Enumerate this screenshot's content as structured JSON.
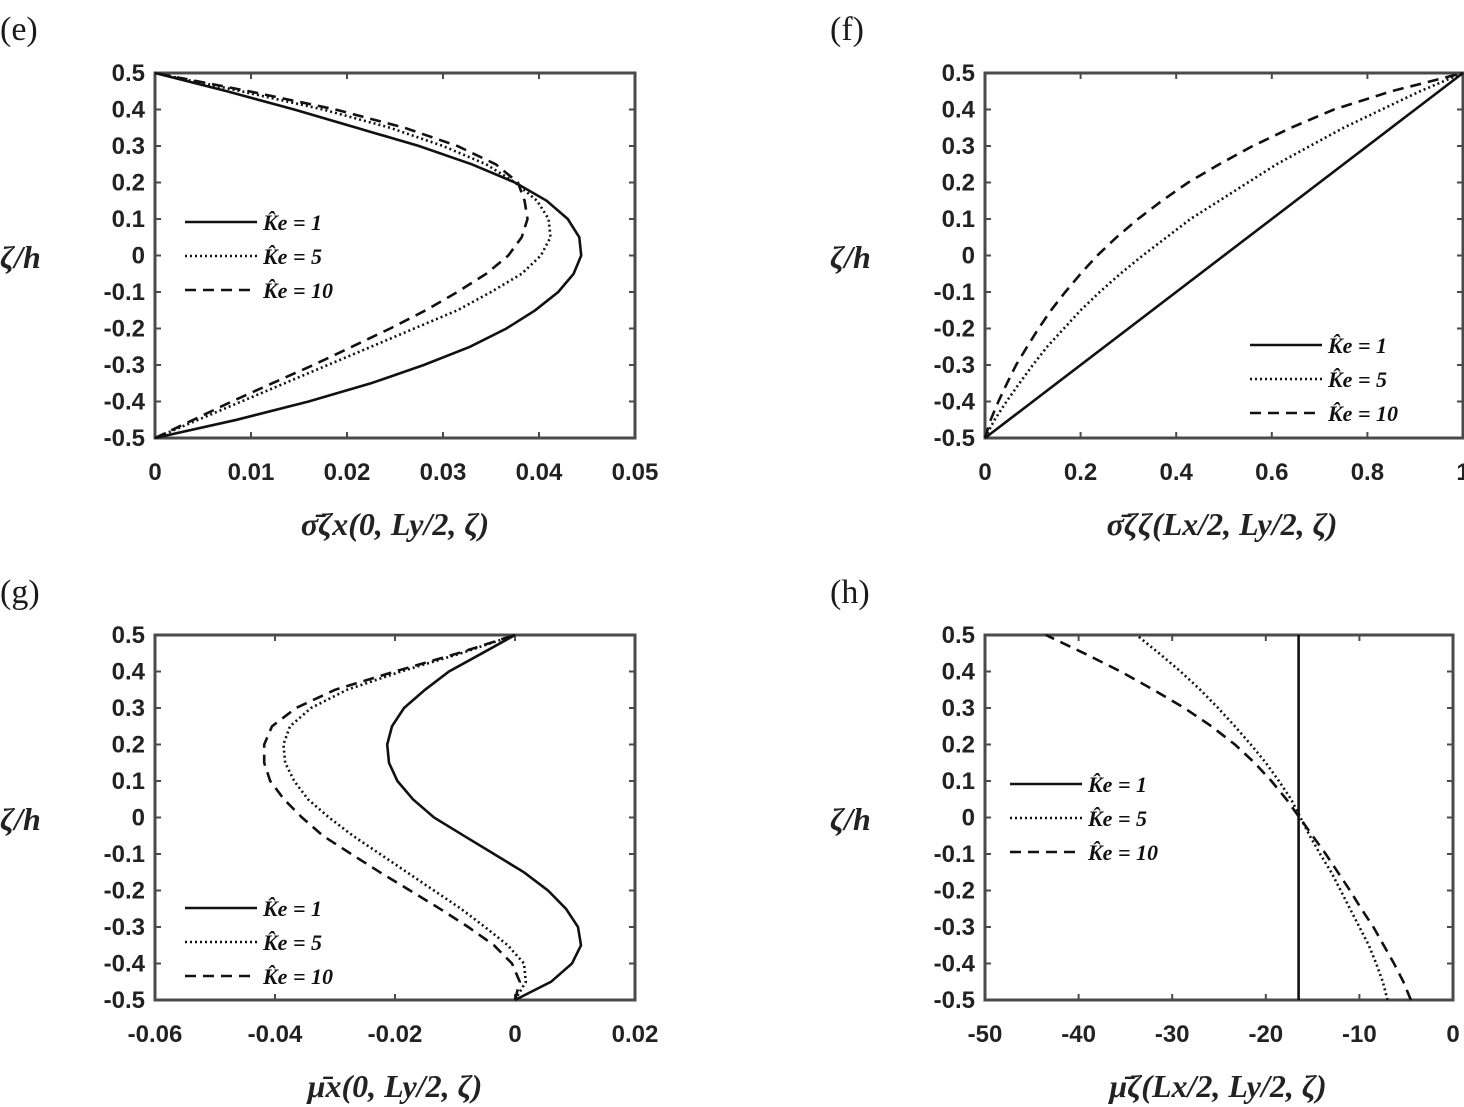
{
  "chart_data": [
    {
      "panel": "(e)",
      "type": "line",
      "xlabel": "σ̄ζx(0, Ly/2, ζ)",
      "ylabel": "ζ/h",
      "xlim": [
        0,
        0.05
      ],
      "ylim": [
        -0.5,
        0.5
      ],
      "xticks": [
        0,
        0.01,
        0.02,
        0.03,
        0.04,
        0.05
      ],
      "xtick_labels": [
        "0",
        "0.01",
        "0.02",
        "0.03",
        "0.04",
        "0.05"
      ],
      "yticks": [
        0.5,
        0.4,
        0.3,
        0.2,
        0.1,
        0,
        -0.1,
        -0.2,
        -0.3,
        -0.4,
        -0.5
      ],
      "ytick_labels": [
        "0.5",
        "0.4",
        "0.3",
        "0.2",
        "0.1",
        "0",
        "-0.1",
        "-0.2",
        "-0.3",
        "-0.4",
        "-0.5"
      ],
      "legend_position": "center-left",
      "grid": false,
      "series": [
        {
          "name": "K̂e = 1",
          "dash": "solid",
          "y": [
            -0.5,
            -0.45,
            -0.4,
            -0.35,
            -0.3,
            -0.25,
            -0.2,
            -0.15,
            -0.1,
            -0.05,
            0,
            0.05,
            0.1,
            0.15,
            0.2,
            0.25,
            0.3,
            0.35,
            0.4,
            0.45,
            0.5
          ],
          "x": [
            0,
            0.0085,
            0.016,
            0.0225,
            0.028,
            0.0328,
            0.0366,
            0.0396,
            0.042,
            0.0436,
            0.0444,
            0.0442,
            0.043,
            0.0408,
            0.0375,
            0.033,
            0.0275,
            0.021,
            0.0145,
            0.0075,
            0
          ]
        },
        {
          "name": "K̂e = 5",
          "dash": "dotted",
          "y": [
            -0.5,
            -0.45,
            -0.4,
            -0.35,
            -0.3,
            -0.25,
            -0.2,
            -0.15,
            -0.1,
            -0.05,
            0,
            0.05,
            0.1,
            0.15,
            0.2,
            0.25,
            0.3,
            0.35,
            0.4,
            0.45,
            0.5
          ],
          "x": [
            0,
            0.0045,
            0.009,
            0.0135,
            0.018,
            0.0225,
            0.027,
            0.0315,
            0.035,
            0.0382,
            0.0402,
            0.0412,
            0.041,
            0.0398,
            0.0375,
            0.0345,
            0.03,
            0.0245,
            0.0175,
            0.009,
            0
          ]
        },
        {
          "name": "K̂e = 10",
          "dash": "dashed",
          "y": [
            -0.5,
            -0.45,
            -0.4,
            -0.35,
            -0.3,
            -0.25,
            -0.2,
            -0.15,
            -0.1,
            -0.05,
            0,
            0.05,
            0.1,
            0.15,
            0.2,
            0.25,
            0.3,
            0.35,
            0.4,
            0.45,
            0.5
          ],
          "x": [
            0,
            0.004,
            0.008,
            0.0122,
            0.0165,
            0.0205,
            0.0245,
            0.0282,
            0.0315,
            0.0345,
            0.0368,
            0.0382,
            0.0388,
            0.0385,
            0.0378,
            0.0355,
            0.0315,
            0.026,
            0.0188,
            0.0098,
            0
          ]
        }
      ]
    },
    {
      "panel": "(f)",
      "type": "line",
      "xlabel": "σ̄ζζ(Lx/2, Ly/2, ζ)",
      "ylabel": "ζ/h",
      "xlim": [
        0,
        1
      ],
      "ylim": [
        -0.5,
        0.5
      ],
      "xticks": [
        0,
        0.2,
        0.4,
        0.6,
        0.8,
        1
      ],
      "xtick_labels": [
        "0",
        "0.2",
        "0.4",
        "0.6",
        "0.8",
        "1"
      ],
      "yticks": [
        0.5,
        0.4,
        0.3,
        0.2,
        0.1,
        0,
        -0.1,
        -0.2,
        -0.3,
        -0.4,
        -0.5
      ],
      "ytick_labels": [
        "0.5",
        "0.4",
        "0.3",
        "0.2",
        "0.1",
        "0",
        "-0.1",
        "-0.2",
        "-0.3",
        "-0.4",
        "-0.5"
      ],
      "legend_position": "lower-right",
      "grid": false,
      "series": [
        {
          "name": "K̂e = 1",
          "dash": "solid",
          "y": [
            -0.5,
            0.5
          ],
          "x": [
            0,
            1
          ]
        },
        {
          "name": "K̂e = 5",
          "dash": "dotted",
          "y": [
            -0.5,
            -0.45,
            -0.4,
            -0.35,
            -0.3,
            -0.25,
            -0.2,
            -0.15,
            -0.1,
            -0.05,
            0,
            0.05,
            0.1,
            0.15,
            0.2,
            0.25,
            0.3,
            0.35,
            0.4,
            0.45,
            0.5
          ],
          "x": [
            0,
            0.02,
            0.045,
            0.072,
            0.1,
            0.13,
            0.165,
            0.2,
            0.24,
            0.283,
            0.33,
            0.38,
            0.43,
            0.49,
            0.55,
            0.61,
            0.68,
            0.75,
            0.83,
            0.91,
            1
          ]
        },
        {
          "name": "K̂e = 10",
          "dash": "dashed",
          "y": [
            -0.5,
            -0.45,
            -0.4,
            -0.35,
            -0.3,
            -0.25,
            -0.2,
            -0.15,
            -0.1,
            -0.05,
            0,
            0.05,
            0.1,
            0.15,
            0.2,
            0.25,
            0.3,
            0.35,
            0.4,
            0.45,
            0.5
          ],
          "x": [
            0,
            0.012,
            0.028,
            0.046,
            0.065,
            0.088,
            0.112,
            0.138,
            0.168,
            0.2,
            0.235,
            0.275,
            0.32,
            0.37,
            0.425,
            0.49,
            0.56,
            0.64,
            0.73,
            0.85,
            1
          ]
        }
      ]
    },
    {
      "panel": "(g)",
      "type": "line",
      "xlabel": "μ̄x(0, Ly/2, ζ)",
      "ylabel": "ζ/h",
      "xlim": [
        -0.06,
        0.02
      ],
      "ylim": [
        -0.5,
        0.5
      ],
      "xticks": [
        -0.06,
        -0.04,
        -0.02,
        0,
        0.02
      ],
      "xtick_labels": [
        "-0.06",
        "-0.04",
        "-0.02",
        "0",
        "0.02"
      ],
      "yticks": [
        0.5,
        0.4,
        0.3,
        0.2,
        0.1,
        0,
        -0.1,
        -0.2,
        -0.3,
        -0.4,
        -0.5
      ],
      "ytick_labels": [
        "0.5",
        "0.4",
        "0.3",
        "0.2",
        "0.1",
        "0",
        "-0.1",
        "-0.2",
        "-0.3",
        "-0.4",
        "-0.5"
      ],
      "legend_position": "lower-left",
      "grid": false,
      "series": [
        {
          "name": "K̂e = 1",
          "dash": "solid",
          "y": [
            -0.5,
            -0.45,
            -0.4,
            -0.35,
            -0.3,
            -0.25,
            -0.2,
            -0.15,
            -0.1,
            -0.05,
            0,
            0.05,
            0.1,
            0.15,
            0.2,
            0.25,
            0.3,
            0.35,
            0.4,
            0.45,
            0.5
          ],
          "x": [
            0,
            0.006,
            0.0095,
            0.011,
            0.0105,
            0.0085,
            0.0055,
            0.0015,
            -0.0035,
            -0.0085,
            -0.0135,
            -0.017,
            -0.0196,
            -0.021,
            -0.0213,
            -0.0205,
            -0.0185,
            -0.015,
            -0.011,
            -0.0055,
            0
          ]
        },
        {
          "name": "K̂e = 5",
          "dash": "dotted",
          "y": [
            -0.5,
            -0.45,
            -0.4,
            -0.35,
            -0.3,
            -0.25,
            -0.2,
            -0.15,
            -0.1,
            -0.05,
            0,
            0.05,
            0.1,
            0.15,
            0.2,
            0.25,
            0.3,
            0.35,
            0.4,
            0.45,
            0.5
          ],
          "x": [
            0,
            0.0018,
            0.0015,
            -0.0012,
            -0.005,
            -0.009,
            -0.0135,
            -0.018,
            -0.0225,
            -0.027,
            -0.031,
            -0.0345,
            -0.0368,
            -0.0383,
            -0.0386,
            -0.0375,
            -0.034,
            -0.028,
            -0.019,
            -0.009,
            0
          ]
        },
        {
          "name": "K̂e = 10",
          "dash": "dashed",
          "y": [
            -0.5,
            -0.45,
            -0.4,
            -0.35,
            -0.3,
            -0.25,
            -0.2,
            -0.15,
            -0.1,
            -0.05,
            0,
            0.05,
            0.1,
            0.15,
            0.2,
            0.25,
            0.3,
            0.35,
            0.4,
            0.45,
            0.5
          ],
          "x": [
            0,
            0.0008,
            -0.0005,
            -0.0035,
            -0.0078,
            -0.0125,
            -0.0175,
            -0.0225,
            -0.0273,
            -0.032,
            -0.0355,
            -0.0385,
            -0.0408,
            -0.0418,
            -0.0418,
            -0.0405,
            -0.0365,
            -0.03,
            -0.02,
            -0.0095,
            0
          ]
        }
      ]
    },
    {
      "panel": "(h)",
      "type": "line",
      "xlabel": "μ̄ζ(Lx/2, Ly/2, ζ)",
      "ylabel": "ζ/h",
      "xlim": [
        -50,
        0
      ],
      "ylim": [
        -0.5,
        0.5
      ],
      "xticks": [
        -50,
        -40,
        -30,
        -20,
        -10,
        0
      ],
      "xtick_labels": [
        "-50",
        "-40",
        "-30",
        "-20",
        "-10",
        "0"
      ],
      "yticks": [
        0.5,
        0.4,
        0.3,
        0.2,
        0.1,
        0,
        -0.1,
        -0.2,
        -0.3,
        -0.4,
        -0.5
      ],
      "ytick_labels": [
        "0.5",
        "0.4",
        "0.3",
        "0.2",
        "0.1",
        "0",
        "-0.1",
        "-0.2",
        "-0.3",
        "-0.4",
        "-0.5"
      ],
      "legend_position": "center-left",
      "grid": false,
      "series": [
        {
          "name": "K̂e = 1",
          "dash": "solid",
          "y": [
            -0.5,
            0.5
          ],
          "x": [
            -16.5,
            -16.5
          ]
        },
        {
          "name": "K̂e = 5",
          "dash": "dotted",
          "y": [
            -0.5,
            -0.45,
            -0.4,
            -0.35,
            -0.3,
            -0.25,
            -0.2,
            -0.15,
            -0.1,
            -0.05,
            0,
            0.05,
            0.1,
            0.15,
            0.2,
            0.25,
            0.3,
            0.35,
            0.4,
            0.45,
            0.5
          ],
          "x": [
            -7,
            -7.5,
            -8.2,
            -9,
            -10,
            -11,
            -12,
            -13,
            -14.2,
            -15.3,
            -16.3,
            -17.3,
            -18.6,
            -20,
            -21.6,
            -23.3,
            -25.1,
            -27,
            -29.1,
            -31.4,
            -33.8
          ]
        },
        {
          "name": "K̂e = 10",
          "dash": "dashed",
          "y": [
            -0.5,
            -0.45,
            -0.4,
            -0.35,
            -0.3,
            -0.25,
            -0.2,
            -0.15,
            -0.1,
            -0.05,
            0,
            0.05,
            0.1,
            0.15,
            0.2,
            0.25,
            0.3,
            0.35,
            0.4,
            0.45,
            0.5
          ],
          "x": [
            -4.5,
            -5.3,
            -6.3,
            -7.4,
            -8.5,
            -9.8,
            -11,
            -12.3,
            -13.6,
            -15,
            -16.4,
            -17.8,
            -19.4,
            -21.2,
            -23.3,
            -25.8,
            -28.7,
            -32,
            -35.5,
            -39.4,
            -43.5
          ]
        }
      ]
    }
  ]
}
